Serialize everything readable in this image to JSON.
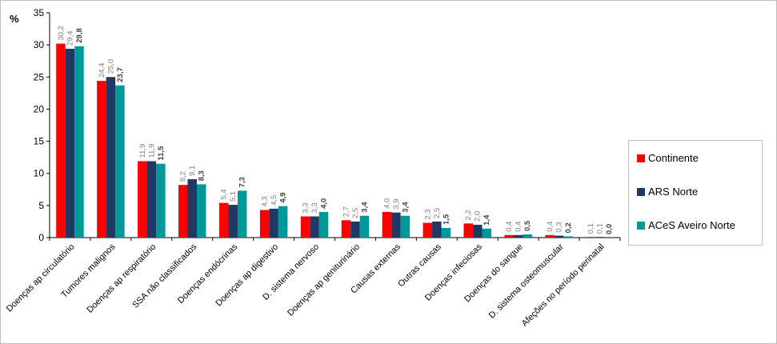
{
  "chart_data": {
    "type": "bar",
    "title": "",
    "ylabel": "%",
    "xlabel": "",
    "ylim": [
      0,
      35
    ],
    "yticks": [
      0,
      5,
      10,
      15,
      20,
      25,
      30,
      35
    ],
    "grid": false,
    "legend_position": "right",
    "categories": [
      "Doenças ap circulatório",
      "Tumores malignos",
      "Doenças ap respiratório",
      "SSA não classificados",
      "Doenças endócrinas",
      "Doenças ap digestivo",
      "D. sistema nervoso",
      "Doenças ap geniturinário",
      "Causas externas",
      "Outras causas",
      "Doenças infeciosas",
      "Doenças do sangue",
      "D. sistema osteomuscular",
      "Afeções no período perinatal"
    ],
    "series": [
      {
        "name": "Continente",
        "color": "#ff0000",
        "values": [
          30.2,
          24.4,
          11.9,
          8.2,
          5.4,
          4.3,
          3.3,
          2.7,
          4.0,
          2.3,
          2.2,
          0.4,
          0.4,
          0.1
        ],
        "labels": [
          "30,2",
          "24,4",
          "11,9",
          "8,2",
          "5,4",
          "4,3",
          "3,3",
          "2,7",
          "4,0",
          "2,3",
          "2,2",
          "0,4",
          "0,4",
          "0,1"
        ]
      },
      {
        "name": "ARS Norte",
        "color": "#1f3864",
        "values": [
          29.4,
          25.0,
          11.9,
          9.1,
          5.1,
          4.5,
          3.3,
          2.5,
          3.9,
          2.5,
          2.0,
          0.4,
          0.3,
          0.1
        ],
        "labels": [
          "29,4",
          "25,0",
          "11,9",
          "9,1",
          "5,1",
          "4,5",
          "3,3",
          "2,5",
          "3,9",
          "2,5",
          "2,0",
          "0,4",
          "0,3",
          "0,1"
        ]
      },
      {
        "name": "ACeS Aveiro Norte",
        "color": "#009999",
        "values": [
          29.8,
          23.7,
          11.5,
          8.3,
          7.3,
          4.9,
          4.0,
          3.4,
          3.4,
          1.5,
          1.4,
          0.5,
          0.2,
          0.0
        ],
        "labels": [
          "29,8",
          "23,7",
          "11,5",
          "8,3",
          "7,3",
          "4,9",
          "4,0",
          "3,4",
          "3,4",
          "1,5",
          "1,4",
          "0,5",
          "0,2",
          "0,0"
        ]
      }
    ]
  }
}
